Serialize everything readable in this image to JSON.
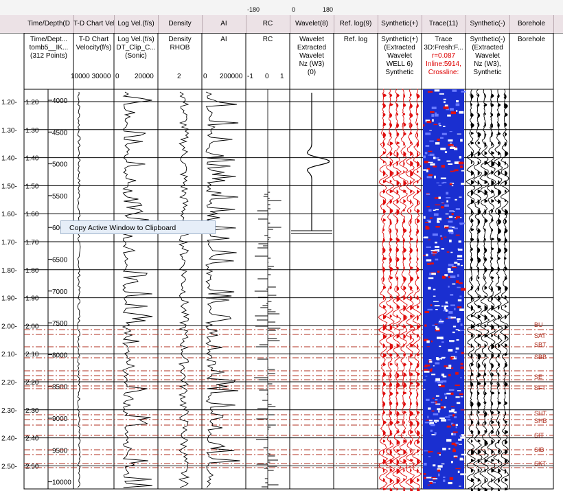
{
  "toolbar": {
    "angle_left": "-180",
    "angle_mid": "0",
    "angle_right": "180"
  },
  "tabs": [
    {
      "label": "Time/Depth(D"
    },
    {
      "label": "T-D Chart Velocity(f/s)"
    },
    {
      "label": "Log Vel.(f/s)"
    },
    {
      "label": "Density"
    },
    {
      "label": "AI"
    },
    {
      "label": "RC"
    },
    {
      "label": "Wavelet(8)"
    },
    {
      "label": "Ref. log(9)"
    },
    {
      "label": "Synthetic(+)"
    },
    {
      "label": "Trace(11)"
    },
    {
      "label": "Synthetic(-)"
    },
    {
      "label": "Borehole"
    }
  ],
  "track_headers": {
    "timedepth": [
      "Time/Dept...",
      "tomb5__IK...",
      "(312 Points)"
    ],
    "td_chart": [
      "T-D Chart",
      "Velocity(f/s)"
    ],
    "td_chart_scale": "10000 30000",
    "logvel": [
      "Log Vel.(f/s)",
      "DT_Clip_C...",
      "(Sonic)"
    ],
    "logvel_scale": [
      "0",
      "20000"
    ],
    "density": [
      "Density",
      "RHOB"
    ],
    "density_scale": "2",
    "ai": [
      "AI"
    ],
    "ai_scale": [
      "0",
      "200000"
    ],
    "rc": [
      "RC"
    ],
    "rc_scale": [
      "-1",
      "0",
      "1"
    ],
    "wavelet": [
      "Wavelet",
      "Extracted",
      "Wavelet",
      "Nz (W3)",
      "(0)"
    ],
    "reflog": [
      "Ref. log"
    ],
    "synth_pos": [
      "Synthetic(+)",
      "(Extracted",
      "Wavelet",
      "WELL 6)",
      "Synthetic"
    ],
    "trace": [
      "Trace",
      "3D:Fresh:F...",
      "r=0.087",
      "Inline:5914,",
      "Crossline:"
    ],
    "synth_neg": [
      "Synthetic(-)",
      "(Extracted",
      "Wavelet",
      "Nz (W3),",
      "Synthetic"
    ],
    "borehole": [
      "Borehole"
    ]
  },
  "time_labels": [
    "1.20",
    "1.30",
    "1.40",
    "1.50",
    "1.60",
    "1.70",
    "1.80",
    "1.90",
    "2.00",
    "2.10",
    "2.20",
    "2.30",
    "2.40",
    "2.50"
  ],
  "depth_labels": [
    "4000",
    "4500",
    "5000",
    "5500",
    "6000",
    "6500",
    "7000",
    "7500",
    "8000",
    "8500",
    "9000",
    "9500",
    "10000"
  ],
  "horizons": [
    "BU",
    "SAT",
    "SBT",
    "SBB",
    "SE",
    "SFT",
    "SHT",
    "SHB",
    "SIT",
    "SIB",
    "SKT"
  ],
  "context_menu": {
    "label": "Copy Active Window to Clipboard"
  },
  "colors": {
    "synthetic_fill": "#e01010",
    "trace_blue": "#1a2fd0",
    "horizon": "#b03020",
    "tab_bg": "#ece2e6"
  }
}
